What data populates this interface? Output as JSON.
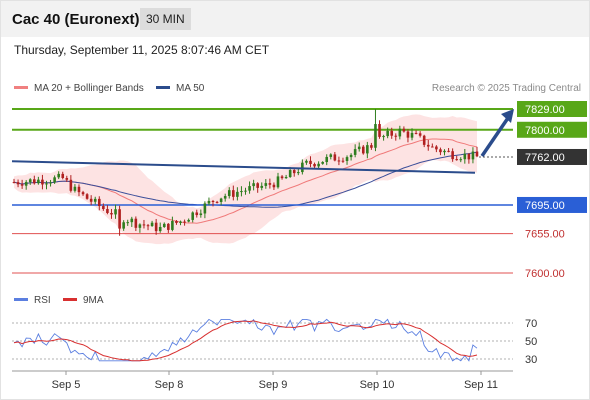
{
  "header": {
    "title": "Cac 40 (Euronext)",
    "interval": "30 MIN"
  },
  "datetime": "Thursday, September 11, 2025 8:07:46 AM CET",
  "legend": {
    "ma20": "MA 20 + Bollinger Bands",
    "ma50": "MA 50",
    "credit": "Research © 2025 Trading Central"
  },
  "rsi_legend": {
    "rsi": "RSI",
    "ma9": "9MA"
  },
  "colors": {
    "green_level": "#58a718",
    "blue_level": "#2a5fd6",
    "red_level": "#e05050",
    "dark_label": "#333333",
    "trend_line": "#2b4c8c",
    "ma50": "#3c4f9a",
    "ma20": "#f07a7a",
    "bollinger_fill": "#fde3e3",
    "candle_up": "#2f7d1f",
    "candle_down": "#b02020",
    "rsi": "#5b7fe0",
    "rsi_ma": "#d83030"
  },
  "chart_data": {
    "type": "candlestick",
    "title": "Cac 40 (Euronext)",
    "interval": "30 MIN",
    "x_ticks": [
      "Sep 5",
      "Sep 8",
      "Sep 9",
      "Sep 10",
      "Sep 11"
    ],
    "price_range": [
      7590,
      7840
    ],
    "levels": [
      {
        "value": 7829.0,
        "label": "7829.00",
        "style": "resistance",
        "color": "green"
      },
      {
        "value": 7800.0,
        "label": "7800.00",
        "style": "resistance",
        "color": "green"
      },
      {
        "value": 7762.0,
        "label": "7762.00",
        "style": "current",
        "color": "dark"
      },
      {
        "value": 7695.0,
        "label": "7695.00",
        "style": "pivot",
        "color": "blue"
      },
      {
        "value": 7655.0,
        "label": "7655.00",
        "style": "support",
        "color": "red"
      },
      {
        "value": 7600.0,
        "label": "7600.00",
        "style": "support",
        "color": "red"
      }
    ],
    "trend_line": {
      "start": 7756,
      "end": 7740
    },
    "rsi": {
      "ticks": [
        70,
        50,
        30
      ]
    }
  }
}
